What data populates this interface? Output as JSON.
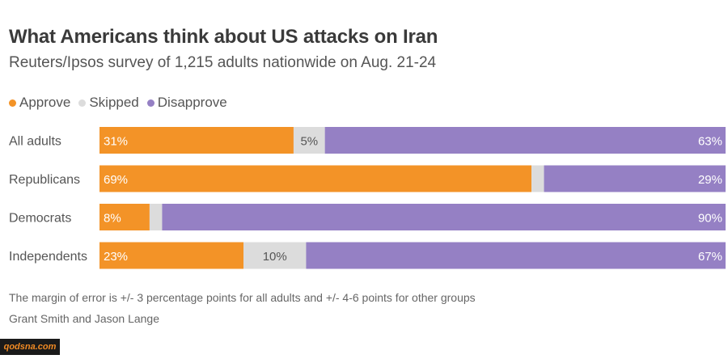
{
  "header": {
    "title": "What Americans think about US attacks on Iran",
    "subtitle": "Reuters/Ipsos survey of 1,215 adults nationwide on Aug. 21-24"
  },
  "legend": [
    {
      "label": "Approve",
      "color": "#f39327"
    },
    {
      "label": "Skipped",
      "color": "#dcdcdc"
    },
    {
      "label": "Disapprove",
      "color": "#9580c4"
    }
  ],
  "chart_data": {
    "type": "bar",
    "orientation": "horizontal",
    "stacked": true,
    "categories": [
      "All adults",
      "Republicans",
      "Democrats",
      "Independents"
    ],
    "series": [
      {
        "name": "Approve",
        "color": "#f39327",
        "values": [
          31,
          69,
          8,
          23
        ]
      },
      {
        "name": "Skipped",
        "color": "#dcdcdc",
        "values": [
          5,
          2,
          2,
          10
        ]
      },
      {
        "name": "Disapprove",
        "color": "#9580c4",
        "values": [
          63,
          29,
          90,
          67
        ]
      }
    ],
    "labels": [
      [
        "31%",
        "5%",
        "63%"
      ],
      [
        "69%",
        "",
        "29%"
      ],
      [
        "8%",
        "",
        "90%"
      ],
      [
        "23%",
        "10%",
        "67%"
      ]
    ],
    "legend_position": "top-left"
  },
  "footer": {
    "note": "The margin of error is +/- 3 percentage points for all adults and +/- 4-6 points for other groups",
    "credit": "Grant Smith and Jason Lange"
  },
  "watermark": "qodsna.com"
}
